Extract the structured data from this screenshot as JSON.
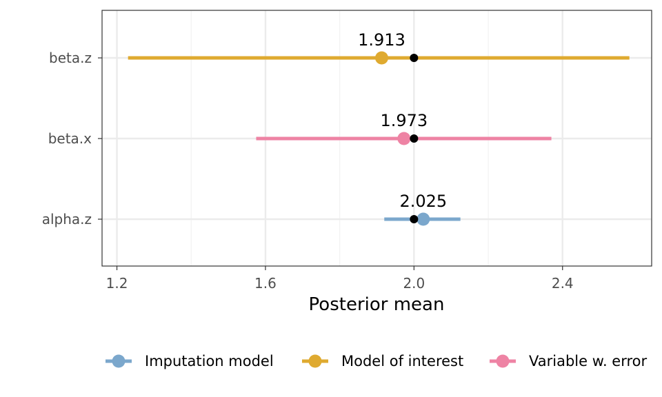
{
  "chart_data": {
    "type": "forest",
    "title": "",
    "xlabel": "Posterior mean",
    "ylabel": "",
    "xlim": [
      1.16,
      2.64
    ],
    "x_ticks": [
      1.2,
      1.6,
      2.0,
      2.4
    ],
    "x_tick_labels": [
      "1.2",
      "1.6",
      "2.0",
      "2.4"
    ],
    "categories": [
      "beta.z",
      "beta.x",
      "alpha.z"
    ],
    "grid": true,
    "legend_position": "bottom",
    "series": [
      {
        "name": "Imputation model",
        "color": "#7ba7cc"
      },
      {
        "name": "Model of interest",
        "color": "#dfaa30"
      },
      {
        "name": "Variable w. error",
        "color": "#ee83a4"
      }
    ],
    "points": [
      {
        "category": "beta.z",
        "series": "Model of interest",
        "estimate": 1.913,
        "lower": 1.23,
        "upper": 2.58,
        "true_value": 2.0,
        "label": "1.913"
      },
      {
        "category": "beta.x",
        "series": "Variable w. error",
        "estimate": 1.973,
        "lower": 1.575,
        "upper": 2.37,
        "true_value": 2.0,
        "label": "1.973"
      },
      {
        "category": "alpha.z",
        "series": "Imputation model",
        "estimate": 2.025,
        "lower": 1.92,
        "upper": 2.125,
        "true_value": 2.0,
        "label": "2.025"
      }
    ]
  }
}
